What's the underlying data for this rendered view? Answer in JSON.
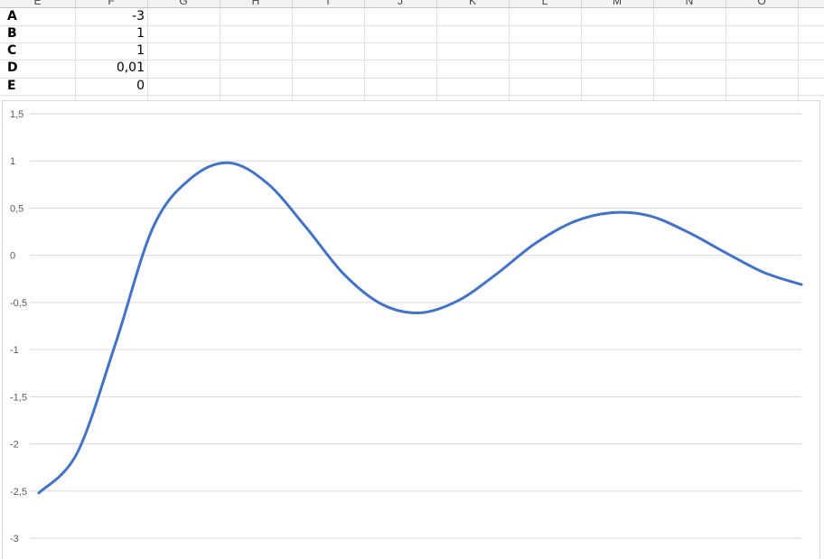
{
  "sheet": {
    "column_headers": [
      "E",
      "F",
      "G",
      "H",
      "I",
      "J",
      "K",
      "L",
      "M",
      "N",
      "O"
    ],
    "cells": [
      {
        "label": "A",
        "value": "-3"
      },
      {
        "label": "B",
        "value": "1"
      },
      {
        "label": "C",
        "value": "1"
      },
      {
        "label": "D",
        "value": "0,01"
      },
      {
        "label": "E",
        "value": "0"
      }
    ]
  },
  "chart_data": {
    "type": "line",
    "title": "",
    "xlabel": "",
    "ylabel": "",
    "ylim": [
      -3,
      1.5
    ],
    "y_ticks": [
      "1,5",
      "1",
      "0,5",
      "0",
      "-0,5",
      "-1",
      "-1,5",
      "-2",
      "-2,5",
      "-3"
    ],
    "grid": true,
    "series_color": "#4472c4",
    "x": [
      0,
      0.05,
      0.1,
      0.15,
      0.2,
      0.25,
      0.3,
      0.35,
      0.4,
      0.45,
      0.5,
      0.55,
      0.6,
      0.65,
      0.7,
      0.75,
      0.8,
      0.85,
      0.9,
      0.95,
      1.0
    ],
    "series": [
      {
        "values": [
          -2.52,
          -2.1,
          -0.95,
          0.3,
          0.82,
          0.98,
          0.76,
          0.3,
          -0.2,
          -0.52,
          -0.61,
          -0.48,
          -0.2,
          0.12,
          0.35,
          0.45,
          0.42,
          0.25,
          0.03,
          -0.18,
          -0.31
        ]
      }
    ]
  }
}
